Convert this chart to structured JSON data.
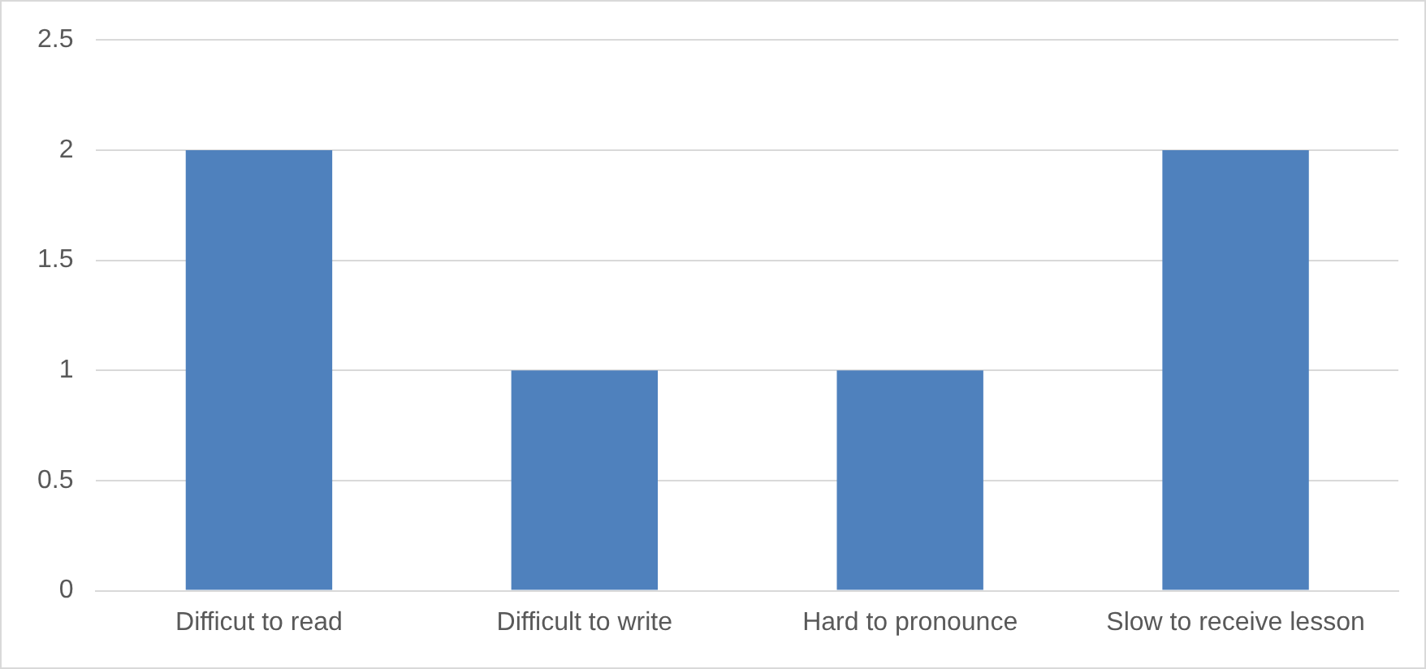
{
  "chart_data": {
    "type": "bar",
    "categories": [
      "Difficut to read",
      "Difficult to write",
      "Hard to pronounce",
      "Slow to receive lesson"
    ],
    "values": [
      2,
      1,
      1,
      2
    ],
    "color": "#4f81bd",
    "ylim": [
      0,
      2.5
    ],
    "yticks": [
      0,
      0.5,
      1,
      1.5,
      2,
      2.5
    ],
    "grid": "y",
    "legend": false
  }
}
